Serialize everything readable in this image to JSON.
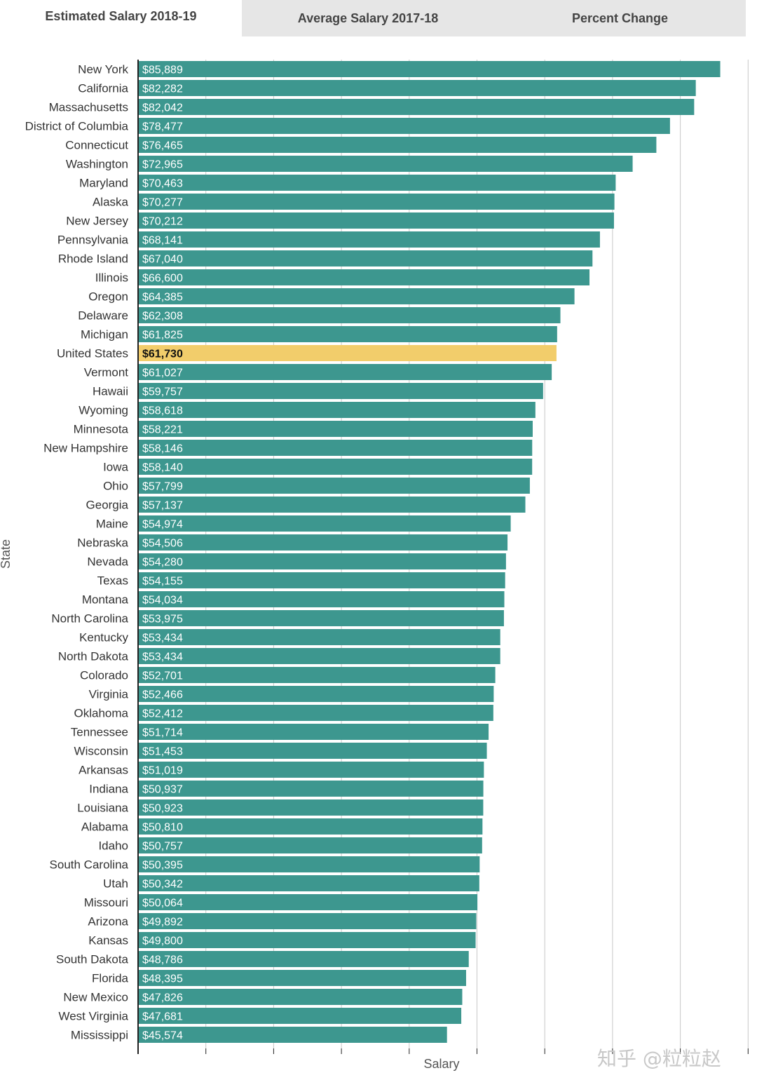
{
  "tabs": [
    {
      "label": "Estimated Salary 2018-19",
      "active": true
    },
    {
      "label": "Average Salary 2017-18",
      "active": false
    },
    {
      "label": "Percent Change",
      "active": false
    }
  ],
  "watermark": "知乎 @粒粒赵",
  "colors": {
    "bar": "#3d978f",
    "highlight": "#f2cd6b",
    "grid": "#c7c7c7",
    "axis": "#222222"
  },
  "chart_data": {
    "type": "bar",
    "orientation": "horizontal",
    "xlabel": "Salary",
    "ylabel": "State",
    "xlim": [
      0,
      90000
    ],
    "x_grid_step": 10000,
    "highlight_category": "United States",
    "categories": [
      "New York",
      "California",
      "Massachusetts",
      "District of Columbia",
      "Connecticut",
      "Washington",
      "Maryland",
      "Alaska",
      "New Jersey",
      "Pennsylvania",
      "Rhode Island",
      "Illinois",
      "Oregon",
      "Delaware",
      "Michigan",
      "United States",
      "Vermont",
      "Hawaii",
      "Wyoming",
      "Minnesota",
      "New Hampshire",
      "Iowa",
      "Ohio",
      "Georgia",
      "Maine",
      "Nebraska",
      "Nevada",
      "Texas",
      "Montana",
      "North Carolina",
      "Kentucky",
      "North Dakota",
      "Colorado",
      "Virginia",
      "Oklahoma",
      "Tennessee",
      "Wisconsin",
      "Arkansas",
      "Indiana",
      "Louisiana",
      "Alabama",
      "Idaho",
      "South Carolina",
      "Utah",
      "Missouri",
      "Arizona",
      "Kansas",
      "South Dakota",
      "Florida",
      "New Mexico",
      "West Virginia",
      "Mississippi"
    ],
    "values": [
      85889,
      82282,
      82042,
      78477,
      76465,
      72965,
      70463,
      70277,
      70212,
      68141,
      67040,
      66600,
      64385,
      62308,
      61825,
      61730,
      61027,
      59757,
      58618,
      58221,
      58146,
      58140,
      57799,
      57137,
      54974,
      54506,
      54280,
      54155,
      54034,
      53975,
      53434,
      53434,
      52701,
      52466,
      52412,
      51714,
      51453,
      51019,
      50937,
      50923,
      50810,
      50757,
      50395,
      50342,
      50064,
      49892,
      49800,
      48786,
      48395,
      47826,
      47681,
      45574
    ],
    "labels": [
      "$85,889",
      "$82,282",
      "$82,042",
      "$78,477",
      "$76,465",
      "$72,965",
      "$70,463",
      "$70,277",
      "$70,212",
      "$68,141",
      "$67,040",
      "$66,600",
      "$64,385",
      "$62,308",
      "$61,825",
      "$61,730",
      "$61,027",
      "$59,757",
      "$58,618",
      "$58,221",
      "$58,146",
      "$58,140",
      "$57,799",
      "$57,137",
      "$54,974",
      "$54,506",
      "$54,280",
      "$54,155",
      "$54,034",
      "$53,975",
      "$53,434",
      "$53,434",
      "$52,701",
      "$52,466",
      "$52,412",
      "$51,714",
      "$51,453",
      "$51,019",
      "$50,937",
      "$50,923",
      "$50,810",
      "$50,757",
      "$50,395",
      "$50,342",
      "$50,064",
      "$49,892",
      "$49,800",
      "$48,786",
      "$48,395",
      "$47,826",
      "$47,681",
      "$45,574"
    ]
  }
}
